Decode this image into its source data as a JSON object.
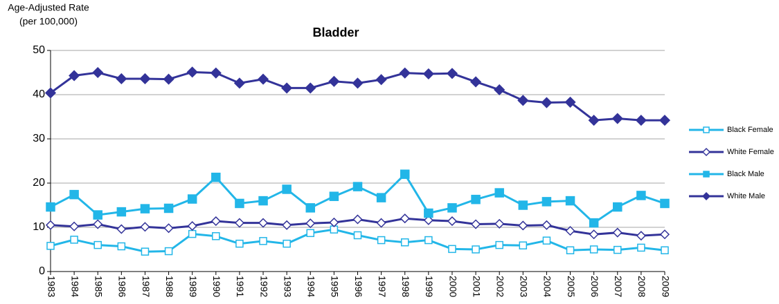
{
  "chart_data": {
    "type": "line",
    "title": "Bladder",
    "ylabel": [
      "Age-Adjusted Rate",
      "(per 100,000)"
    ],
    "categories": [
      "1983",
      "1984",
      "1985",
      "1986",
      "1987",
      "1988",
      "1989",
      "1990",
      "1991",
      "1992",
      "1993",
      "1994",
      "1995",
      "1996",
      "1997",
      "1998",
      "1999",
      "2000",
      "2001",
      "2002",
      "2003",
      "2004",
      "2005",
      "2006",
      "2007",
      "2008",
      "2009"
    ],
    "series": [
      {
        "name": "Black Female",
        "color": "#22b6e8",
        "marker": "square",
        "filled": false,
        "values": [
          5.8,
          7.2,
          6.0,
          5.7,
          4.5,
          4.6,
          8.5,
          8.0,
          6.3,
          6.9,
          6.3,
          8.7,
          9.5,
          8.2,
          7.1,
          6.6,
          7.1,
          5.1,
          5.0,
          6.0,
          5.9,
          7.0,
          4.8,
          5.0,
          4.9,
          5.4,
          4.8
        ]
      },
      {
        "name": "White Female",
        "color": "#333399",
        "marker": "diamond",
        "filled": false,
        "values": [
          10.5,
          10.2,
          10.7,
          9.6,
          10.1,
          9.8,
          10.3,
          11.4,
          11.0,
          11.0,
          10.5,
          10.9,
          11.1,
          11.8,
          11.0,
          12.0,
          11.6,
          11.4,
          10.7,
          10.8,
          10.4,
          10.5,
          9.2,
          8.4,
          8.8,
          8.1,
          8.4
        ]
      },
      {
        "name": "Black Male",
        "color": "#22b6e8",
        "marker": "square",
        "filled": true,
        "values": [
          14.6,
          17.4,
          12.8,
          13.5,
          14.2,
          14.3,
          16.4,
          21.3,
          15.4,
          16.0,
          18.6,
          14.4,
          17.0,
          19.2,
          16.7,
          22.0,
          13.2,
          14.4,
          16.3,
          17.8,
          15.0,
          15.8,
          16.0,
          11.0,
          14.6,
          17.2,
          15.4
        ]
      },
      {
        "name": "White Male",
        "color": "#333399",
        "marker": "diamond",
        "filled": true,
        "values": [
          40.4,
          44.3,
          45.0,
          43.6,
          43.6,
          43.5,
          45.1,
          44.9,
          42.6,
          43.5,
          41.5,
          41.5,
          43.0,
          42.6,
          43.4,
          44.9,
          44.7,
          44.8,
          42.9,
          41.1,
          38.7,
          38.2,
          38.3,
          34.2,
          34.6,
          34.2,
          34.2
        ]
      }
    ],
    "ylim": [
      0,
      50
    ],
    "yticks": [
      0,
      10,
      20,
      30,
      40,
      50
    ],
    "grid": true,
    "legend": "right"
  }
}
